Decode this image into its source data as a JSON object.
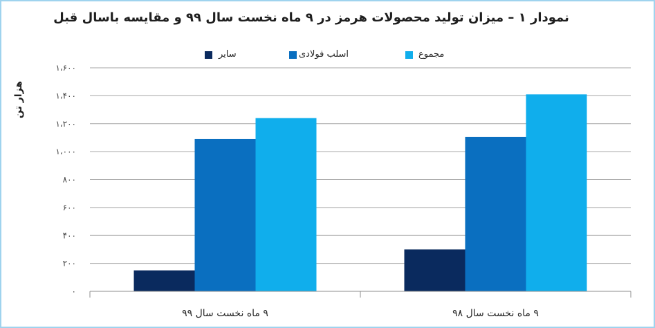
{
  "colors": {
    "border": "#9fd3ee",
    "grid": "#a6a6a6",
    "axis": "#8c8c8c"
  },
  "chart_data": {
    "type": "bar",
    "title": "نمودار ۱ – میزان تولید محصولات هرمز در ۹ ماه نخست سال ۹۹ و مقایسه باسال قبل",
    "xlabel": "",
    "ylabel": "هزار تن",
    "ylim": [
      0,
      1600
    ],
    "grid": "horizontal",
    "legend": "top",
    "y_ticks": [
      {
        "value": 0,
        "label": "۰"
      },
      {
        "value": 200,
        "label": "۲۰۰"
      },
      {
        "value": 400,
        "label": "۴۰۰"
      },
      {
        "value": 600,
        "label": "۶۰۰"
      },
      {
        "value": 800,
        "label": "۸۰۰"
      },
      {
        "value": 1000,
        "label": "۱،۰۰۰"
      },
      {
        "value": 1200,
        "label": "۱،۲۰۰"
      },
      {
        "value": 1400,
        "label": "۱،۴۰۰"
      },
      {
        "value": 1600,
        "label": "۱،۶۰۰"
      }
    ],
    "categories": [
      "۹ ماه نخست سال ۹۹",
      "۹ ماه نخست سال ۹۸"
    ],
    "series": [
      {
        "name": "سایر",
        "color": "#0a2a5e",
        "values": [
          150,
          300
        ]
      },
      {
        "name": "اسلب فولادی",
        "color": "#0a6fc0",
        "values": [
          1090,
          1105
        ]
      },
      {
        "name": "مجموع",
        "color": "#10aeec",
        "values": [
          1240,
          1410
        ]
      }
    ]
  }
}
